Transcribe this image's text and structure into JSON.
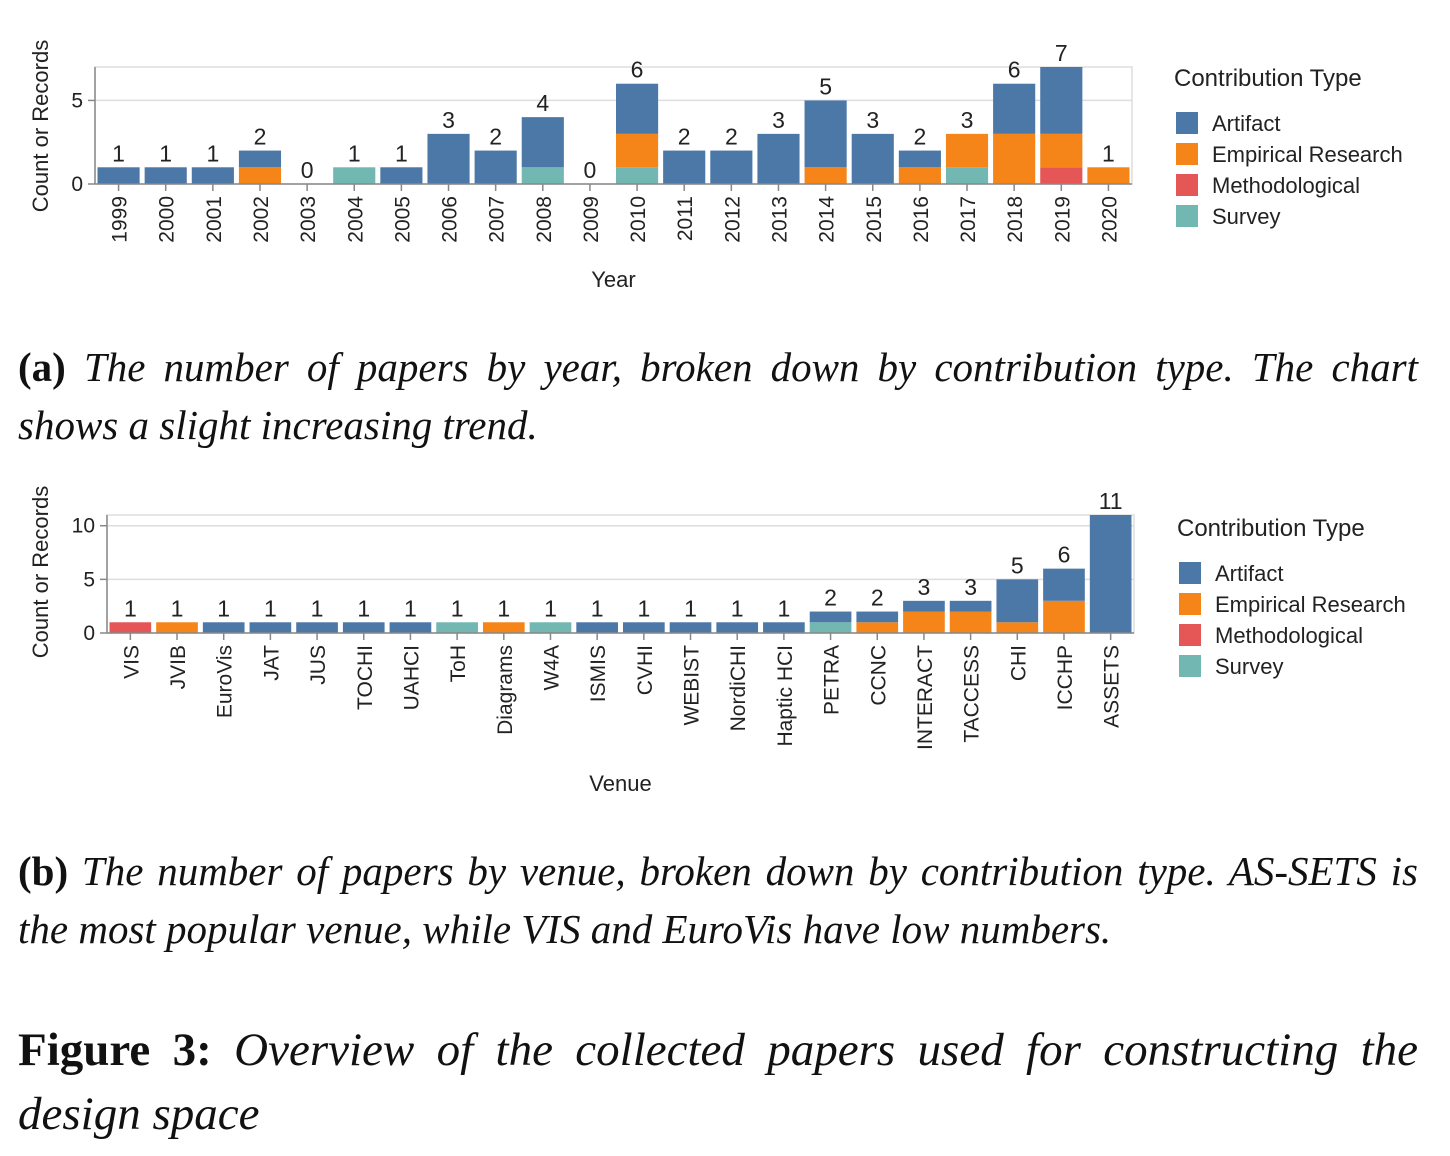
{
  "chart_data": [
    {
      "type": "bar",
      "stacked": true,
      "xlabel": "Year",
      "ylabel": "Count or Records",
      "yticks": [
        0,
        5
      ],
      "ylim": [
        0,
        7
      ],
      "grid": true,
      "legend_position": "right",
      "legend_title": "Contribution Type",
      "categories": [
        "1999",
        "2000",
        "2001",
        "2002",
        "2003",
        "2004",
        "2005",
        "2006",
        "2007",
        "2008",
        "2009",
        "2010",
        "2011",
        "2012",
        "2013",
        "2014",
        "2015",
        "2016",
        "2017",
        "2018",
        "2019",
        "2020"
      ],
      "series": [
        {
          "name": "Survey",
          "color": "#72b7b2",
          "values": [
            0,
            0,
            0,
            0,
            0,
            1,
            0,
            0,
            0,
            1,
            0,
            1,
            0,
            0,
            0,
            0,
            0,
            0,
            1,
            0,
            0,
            0
          ]
        },
        {
          "name": "Methodological",
          "color": "#e45756",
          "values": [
            0,
            0,
            0,
            0,
            0,
            0,
            0,
            0,
            0,
            0,
            0,
            0,
            0,
            0,
            0,
            0,
            0,
            0,
            0,
            0,
            1,
            0
          ]
        },
        {
          "name": "Empirical Research",
          "color": "#f58518",
          "values": [
            0,
            0,
            0,
            1,
            0,
            0,
            0,
            0,
            0,
            0,
            0,
            2,
            0,
            0,
            0,
            1,
            0,
            1,
            2,
            3,
            2,
            1
          ]
        },
        {
          "name": "Artifact",
          "color": "#4c78a8",
          "values": [
            1,
            1,
            1,
            1,
            0,
            0,
            1,
            3,
            2,
            3,
            0,
            3,
            2,
            2,
            3,
            4,
            3,
            1,
            0,
            3,
            4,
            0
          ]
        }
      ],
      "totals": [
        1,
        1,
        1,
        2,
        0,
        1,
        1,
        3,
        2,
        4,
        0,
        6,
        2,
        2,
        3,
        5,
        3,
        2,
        3,
        6,
        7,
        1
      ]
    },
    {
      "type": "bar",
      "stacked": true,
      "xlabel": "Venue",
      "ylabel": "Count or Records",
      "yticks": [
        0,
        5,
        10
      ],
      "ylim": [
        0,
        11
      ],
      "grid": true,
      "legend_position": "right",
      "legend_title": "Contribution Type",
      "categories": [
        "VIS",
        "JVIB",
        "EuroVis",
        "JAT",
        "JUS",
        "TOCHI",
        "UAHCI",
        "ToH",
        "Diagrams",
        "W4A",
        "ISMIS",
        "CVHI",
        "WEBIST",
        "NordiCHI",
        "Haptic HCI",
        "PETRA",
        "CCNC",
        "INTERACT",
        "TACCESS",
        "CHI",
        "ICCHP",
        "ASSETS"
      ],
      "series": [
        {
          "name": "Survey",
          "color": "#72b7b2",
          "values": [
            0,
            0,
            0,
            0,
            0,
            0,
            0,
            1,
            0,
            1,
            0,
            0,
            0,
            0,
            0,
            1,
            0,
            0,
            0,
            0,
            0,
            0
          ]
        },
        {
          "name": "Methodological",
          "color": "#e45756",
          "values": [
            1,
            0,
            0,
            0,
            0,
            0,
            0,
            0,
            0,
            0,
            0,
            0,
            0,
            0,
            0,
            0,
            0,
            0,
            0,
            0,
            0,
            0
          ]
        },
        {
          "name": "Empirical Research",
          "color": "#f58518",
          "values": [
            0,
            1,
            0,
            0,
            0,
            0,
            0,
            0,
            1,
            0,
            0,
            0,
            0,
            0,
            0,
            0,
            1,
            2,
            2,
            1,
            3,
            0
          ]
        },
        {
          "name": "Artifact",
          "color": "#4c78a8",
          "values": [
            0,
            0,
            1,
            1,
            1,
            1,
            1,
            0,
            0,
            0,
            1,
            1,
            1,
            1,
            1,
            1,
            1,
            1,
            1,
            4,
            3,
            11
          ]
        }
      ],
      "totals": [
        1,
        1,
        1,
        1,
        1,
        1,
        1,
        1,
        1,
        1,
        1,
        1,
        1,
        1,
        1,
        2,
        2,
        3,
        3,
        5,
        6,
        11
      ]
    }
  ],
  "legend": {
    "title": "Contribution Type",
    "items": [
      {
        "label": "Artifact",
        "color": "#4c78a8"
      },
      {
        "label": "Empirical Research",
        "color": "#f58518"
      },
      {
        "label": "Methodological",
        "color": "#e45756"
      },
      {
        "label": "Survey",
        "color": "#72b7b2"
      }
    ]
  },
  "captions": {
    "a_label": "(a)",
    "a_text": "The number of papers by year, broken down by contribution type. The chart shows a slight increasing trend.",
    "b_label": "(b)",
    "b_text": "The number of papers by venue, broken down by contribution type. AS-SETS is the most popular venue, while VIS and EuroVis have low numbers.",
    "fig_label": "Figure 3:",
    "fig_text": "Overview of the collected papers used for constructing the design space"
  }
}
